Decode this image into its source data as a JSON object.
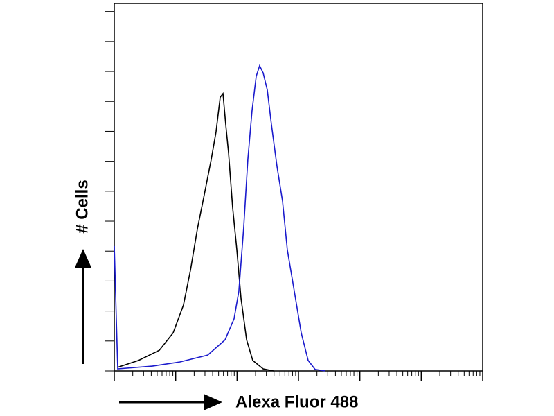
{
  "chart_data": {
    "type": "line",
    "xlabel": "Alexa Fluor 488",
    "ylabel": "# Cells",
    "xscale": "log",
    "xlim": [
      1,
      1000000
    ],
    "xticks": [
      1,
      10,
      100,
      1000,
      10000,
      100000,
      1000000
    ],
    "ylim": [
      0,
      12.27
    ],
    "yticks": [
      0,
      1,
      2,
      3,
      4,
      5,
      6,
      7,
      8,
      9,
      10,
      11,
      12
    ],
    "series": [
      {
        "color": "#000000",
        "x": [
          1.14,
          2.48,
          5.41,
          9.1,
          13.4,
          17.4,
          22.6,
          29.3,
          37.9,
          45.5,
          53.1,
          59.0,
          65.5,
          72.6,
          84.8,
          99.1,
          116,
          143,
          180,
          266,
          393
        ],
        "values": [
          0.12,
          0.35,
          0.69,
          1.27,
          2.2,
          3.36,
          4.75,
          5.9,
          7.06,
          7.99,
          9.14,
          9.26,
          8.22,
          7.29,
          5.44,
          4.05,
          2.43,
          1.04,
          0.35,
          0.07,
          0
        ]
      },
      {
        "color": "#1a1acc",
        "x": [
          1,
          1.14,
          4.17,
          11.8,
          33.3,
          63.7,
          89.4,
          107,
          128,
          150,
          175,
          205,
          233,
          266,
          311,
          363,
          447,
          550,
          659,
          855,
          1109,
          1439,
          1866,
          2754
        ],
        "values": [
          4.17,
          0.07,
          0.16,
          0.3,
          0.53,
          1.04,
          1.74,
          2.66,
          4.75,
          7.06,
          8.68,
          9.84,
          10.19,
          9.95,
          9.38,
          8.22,
          6.83,
          5.67,
          4.05,
          2.66,
          1.27,
          0.35,
          0.05,
          0
        ]
      }
    ]
  }
}
